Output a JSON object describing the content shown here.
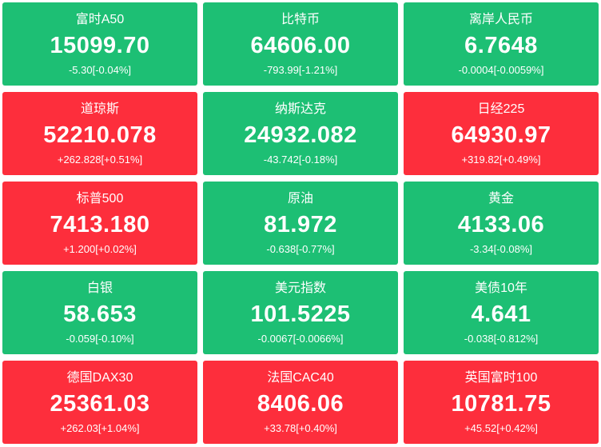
{
  "tiles": [
    {
      "name": "富时A50",
      "price": "15099.70",
      "change": "-5.30[-0.04%]",
      "color": "#1dbf74"
    },
    {
      "name": "比特币",
      "price": "64606.00",
      "change": "-793.99[-1.21%]",
      "color": "#1dbf74"
    },
    {
      "name": "离岸人民币",
      "price": "6.7648",
      "change": "-0.0004[-0.0059%]",
      "color": "#1dbf74"
    },
    {
      "name": "道琼斯",
      "price": "52210.078",
      "change": "+262.828[+0.51%]",
      "color": "#fd2e3c"
    },
    {
      "name": "纳斯达克",
      "price": "24932.082",
      "change": "-43.742[-0.18%]",
      "color": "#1dbf74"
    },
    {
      "name": "日经225",
      "price": "64930.97",
      "change": "+319.82[+0.49%]",
      "color": "#fd2e3c"
    },
    {
      "name": "标普500",
      "price": "7413.180",
      "change": "+1.200[+0.02%]",
      "color": "#fd2e3c"
    },
    {
      "name": "原油",
      "price": "81.972",
      "change": "-0.638[-0.77%]",
      "color": "#1dbf74"
    },
    {
      "name": "黄金",
      "price": "4133.06",
      "change": "-3.34[-0.08%]",
      "color": "#1dbf74"
    },
    {
      "name": "白银",
      "price": "58.653",
      "change": "-0.059[-0.10%]",
      "color": "#1dbf74"
    },
    {
      "name": "美元指数",
      "price": "101.5225",
      "change": "-0.0067[-0.0066%]",
      "color": "#1dbf74"
    },
    {
      "name": "美债10年",
      "price": "4.641",
      "change": "-0.038[-0.812%]",
      "color": "#1dbf74"
    },
    {
      "name": "德国DAX30",
      "price": "25361.03",
      "change": "+262.03[+1.04%]",
      "color": "#fd2e3c"
    },
    {
      "name": "法国CAC40",
      "price": "8406.06",
      "change": "+33.78[+0.40%]",
      "color": "#fd2e3c"
    },
    {
      "name": "英国富时100",
      "price": "10781.75",
      "change": "+45.52[+0.42%]",
      "color": "#fd2e3c"
    }
  ]
}
